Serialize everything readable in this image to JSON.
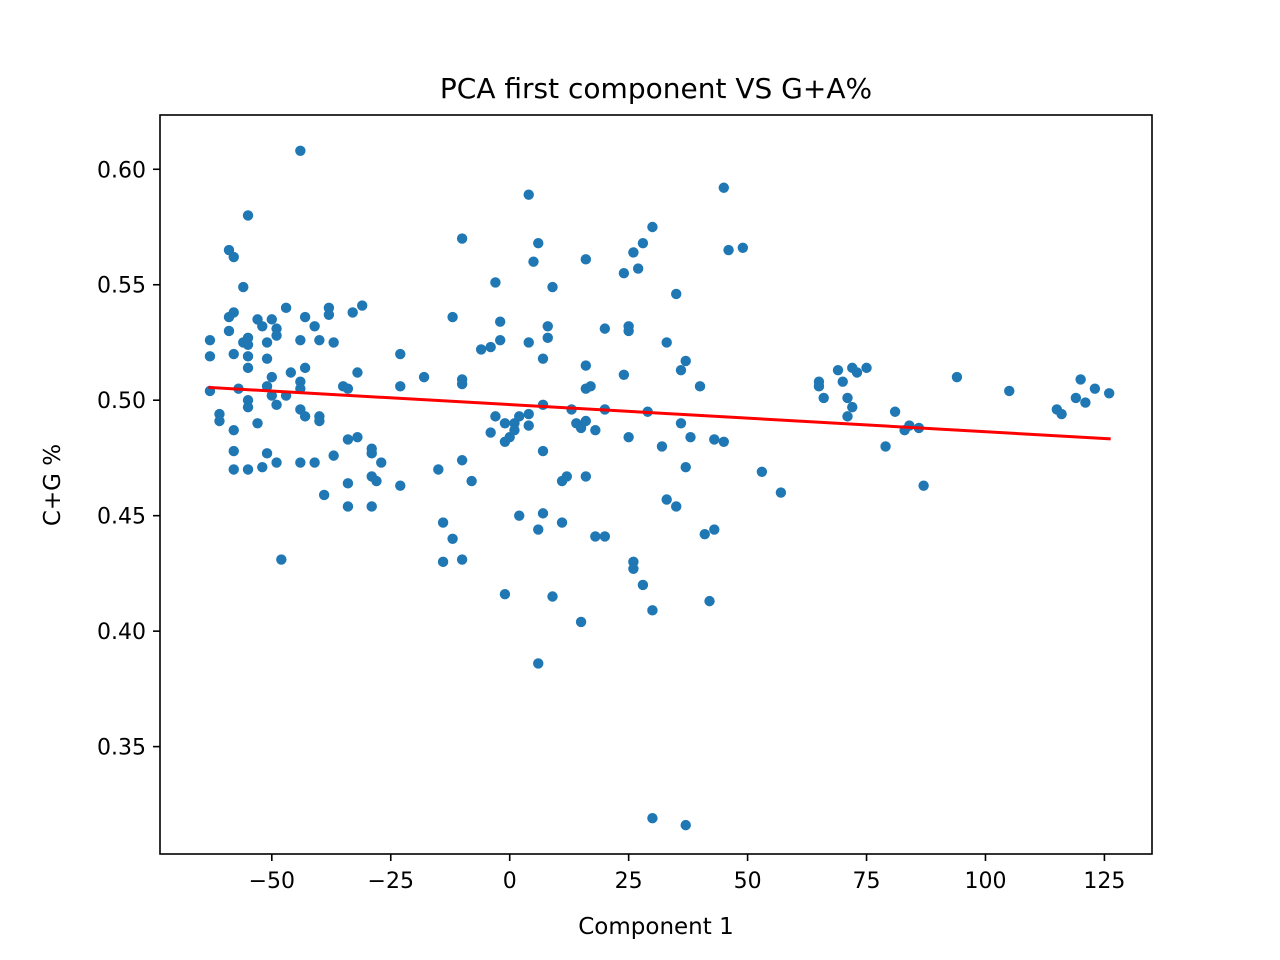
{
  "chart_data": {
    "type": "scatter",
    "title": "PCA first component VS G+A%",
    "xlabel": "Component 1",
    "ylabel": "C+G %",
    "xlim": [
      -73.5,
      135
    ],
    "ylim": [
      0.3035,
      0.6235
    ],
    "xticks": [
      -50,
      -25,
      0,
      25,
      50,
      75,
      100,
      125
    ],
    "xtick_labels": [
      "−50",
      "−25",
      "0",
      "25",
      "50",
      "75",
      "100",
      "125"
    ],
    "yticks": [
      0.35,
      0.4,
      0.45,
      0.5,
      0.55,
      0.6
    ],
    "ytick_labels": [
      "0.35",
      "0.40",
      "0.45",
      "0.50",
      "0.55",
      "0.60"
    ],
    "grid": false,
    "colors": {
      "points": "#1f77b4",
      "fit_line": "#ff0000",
      "axes": "#000000"
    },
    "fit_line": {
      "x": [
        -63,
        126
      ],
      "y": [
        0.5055,
        0.4833
      ]
    },
    "points": [
      [
        -44,
        0.608
      ],
      [
        -55,
        0.58
      ],
      [
        -59,
        0.565
      ],
      [
        -58,
        0.562
      ],
      [
        -56,
        0.549
      ],
      [
        -58,
        0.538
      ],
      [
        -59,
        0.536
      ],
      [
        -53,
        0.535
      ],
      [
        -50,
        0.535
      ],
      [
        -47,
        0.54
      ],
      [
        -43,
        0.536
      ],
      [
        -38,
        0.54
      ],
      [
        -33,
        0.538
      ],
      [
        -31,
        0.541
      ],
      [
        -63,
        0.526
      ],
      [
        -59,
        0.53
      ],
      [
        -55,
        0.527
      ],
      [
        -52,
        0.532
      ],
      [
        -49,
        0.531
      ],
      [
        -49,
        0.528
      ],
      [
        -44,
        0.526
      ],
      [
        -41,
        0.532
      ],
      [
        -40,
        0.526
      ],
      [
        -38,
        0.537
      ],
      [
        -37,
        0.525
      ],
      [
        -56,
        0.525
      ],
      [
        -55,
        0.524
      ],
      [
        -51,
        0.525
      ],
      [
        -63,
        0.519
      ],
      [
        -58,
        0.52
      ],
      [
        -55,
        0.519
      ],
      [
        -51,
        0.518
      ],
      [
        -55,
        0.514
      ],
      [
        -46,
        0.512
      ],
      [
        -43,
        0.514
      ],
      [
        -50,
        0.51
      ],
      [
        -32,
        0.512
      ],
      [
        -23,
        0.52
      ],
      [
        -18,
        0.51
      ],
      [
        -57,
        0.505
      ],
      [
        -51,
        0.506
      ],
      [
        -50,
        0.502
      ],
      [
        -47,
        0.502
      ],
      [
        -44,
        0.508
      ],
      [
        -44,
        0.505
      ],
      [
        -35,
        0.506
      ],
      [
        -34,
        0.505
      ],
      [
        -23,
        0.506
      ],
      [
        -63,
        0.504
      ],
      [
        -55,
        0.5
      ],
      [
        -55,
        0.497
      ],
      [
        -49,
        0.498
      ],
      [
        -44,
        0.496
      ],
      [
        -43,
        0.493
      ],
      [
        -40,
        0.493
      ],
      [
        -40,
        0.491
      ],
      [
        -61,
        0.494
      ],
      [
        -61,
        0.491
      ],
      [
        -53,
        0.49
      ],
      [
        -58,
        0.487
      ],
      [
        -58,
        0.478
      ],
      [
        -51,
        0.477
      ],
      [
        -49,
        0.473
      ],
      [
        -44,
        0.473
      ],
      [
        -41,
        0.473
      ],
      [
        -37,
        0.476
      ],
      [
        -34,
        0.483
      ],
      [
        -32,
        0.484
      ],
      [
        -29,
        0.479
      ],
      [
        -29,
        0.477
      ],
      [
        -58,
        0.47
      ],
      [
        -55,
        0.47
      ],
      [
        -52,
        0.471
      ],
      [
        -27,
        0.473
      ],
      [
        -29,
        0.467
      ],
      [
        -28,
        0.465
      ],
      [
        -34,
        0.464
      ],
      [
        -23,
        0.463
      ],
      [
        -39,
        0.459
      ],
      [
        -34,
        0.454
      ],
      [
        -29,
        0.454
      ],
      [
        -48,
        0.431
      ],
      [
        -12,
        0.536
      ],
      [
        -10,
        0.57
      ],
      [
        -6,
        0.522
      ],
      [
        -4,
        0.523
      ],
      [
        -3,
        0.551
      ],
      [
        -2,
        0.534
      ],
      [
        -2,
        0.526
      ],
      [
        -10,
        0.509
      ],
      [
        -10,
        0.507
      ],
      [
        -15,
        0.47
      ],
      [
        -10,
        0.474
      ],
      [
        -8,
        0.465
      ],
      [
        -4,
        0.486
      ],
      [
        -3,
        0.493
      ],
      [
        -1,
        0.49
      ],
      [
        -1,
        0.482
      ],
      [
        0,
        0.484
      ],
      [
        1,
        0.49
      ],
      [
        1,
        0.487
      ],
      [
        2,
        0.493
      ],
      [
        2,
        0.45
      ],
      [
        -14,
        0.447
      ],
      [
        -12,
        0.44
      ],
      [
        -14,
        0.43
      ],
      [
        -10,
        0.431
      ],
      [
        -1,
        0.416
      ],
      [
        4,
        0.589
      ],
      [
        5,
        0.56
      ],
      [
        6,
        0.568
      ],
      [
        8,
        0.532
      ],
      [
        8,
        0.527
      ],
      [
        7,
        0.518
      ],
      [
        4,
        0.525
      ],
      [
        9,
        0.549
      ],
      [
        4,
        0.494
      ],
      [
        4,
        0.489
      ],
      [
        7,
        0.498
      ],
      [
        7,
        0.478
      ],
      [
        6,
        0.444
      ],
      [
        7,
        0.451
      ],
      [
        11,
        0.465
      ],
      [
        12,
        0.467
      ],
      [
        11,
        0.447
      ],
      [
        9,
        0.415
      ],
      [
        6,
        0.386
      ],
      [
        13,
        0.496
      ],
      [
        14,
        0.49
      ],
      [
        15,
        0.488
      ],
      [
        16,
        0.491
      ],
      [
        16,
        0.515
      ],
      [
        16,
        0.505
      ],
      [
        17,
        0.506
      ],
      [
        16,
        0.561
      ],
      [
        18,
        0.487
      ],
      [
        16,
        0.467
      ],
      [
        18,
        0.441
      ],
      [
        20,
        0.441
      ],
      [
        20,
        0.496
      ],
      [
        20,
        0.531
      ],
      [
        15,
        0.404
      ],
      [
        24,
        0.555
      ],
      [
        26,
        0.564
      ],
      [
        27,
        0.557
      ],
      [
        28,
        0.568
      ],
      [
        30,
        0.575
      ],
      [
        25,
        0.532
      ],
      [
        25,
        0.53
      ],
      [
        24,
        0.511
      ],
      [
        29,
        0.495
      ],
      [
        25,
        0.484
      ],
      [
        26,
        0.43
      ],
      [
        26,
        0.427
      ],
      [
        28,
        0.42
      ],
      [
        30,
        0.409
      ],
      [
        30,
        0.319
      ],
      [
        32,
        0.48
      ],
      [
        33,
        0.457
      ],
      [
        33,
        0.525
      ],
      [
        35,
        0.546
      ],
      [
        36,
        0.513
      ],
      [
        36,
        0.49
      ],
      [
        35,
        0.454
      ],
      [
        37,
        0.517
      ],
      [
        38,
        0.484
      ],
      [
        37,
        0.471
      ],
      [
        37,
        0.316
      ],
      [
        40,
        0.506
      ],
      [
        41,
        0.442
      ],
      [
        42,
        0.413
      ],
      [
        43,
        0.483
      ],
      [
        43,
        0.444
      ],
      [
        45,
        0.482
      ],
      [
        45,
        0.592
      ],
      [
        46,
        0.565
      ],
      [
        49,
        0.566
      ],
      [
        53,
        0.469
      ],
      [
        57,
        0.46
      ],
      [
        65,
        0.508
      ],
      [
        65,
        0.506
      ],
      [
        66,
        0.501
      ],
      [
        69,
        0.513
      ],
      [
        70,
        0.508
      ],
      [
        71,
        0.501
      ],
      [
        72,
        0.514
      ],
      [
        73,
        0.512
      ],
      [
        75,
        0.514
      ],
      [
        72,
        0.497
      ],
      [
        71,
        0.493
      ],
      [
        79,
        0.48
      ],
      [
        81,
        0.495
      ],
      [
        83,
        0.487
      ],
      [
        84,
        0.489
      ],
      [
        86,
        0.488
      ],
      [
        87,
        0.463
      ],
      [
        94,
        0.51
      ],
      [
        105,
        0.504
      ],
      [
        115,
        0.496
      ],
      [
        116,
        0.494
      ],
      [
        119,
        0.501
      ],
      [
        120,
        0.509
      ],
      [
        121,
        0.499
      ],
      [
        123,
        0.505
      ],
      [
        126,
        0.503
      ]
    ]
  }
}
